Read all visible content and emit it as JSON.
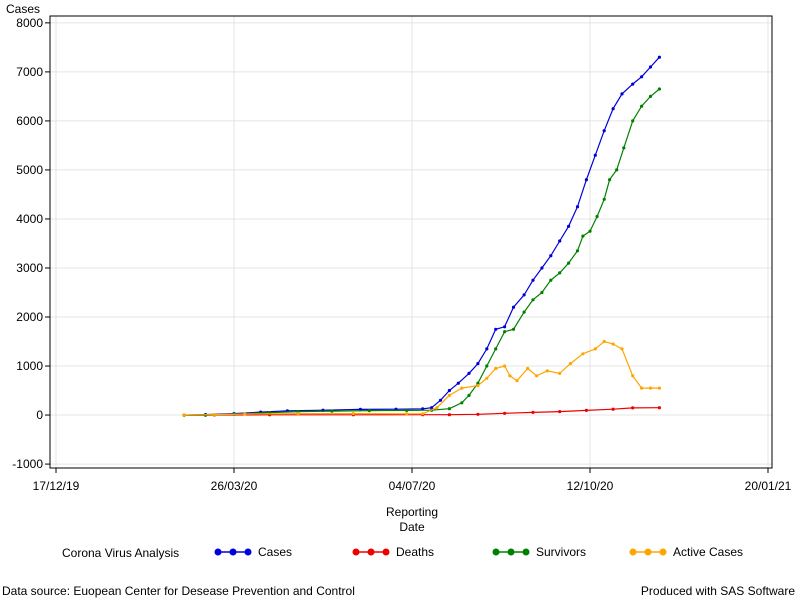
{
  "chart_data": {
    "type": "line",
    "ylabel": "Cases",
    "xlabel_lines": [
      "Reporting",
      "Date"
    ],
    "ylim": [
      -1000,
      8000
    ],
    "y_ticks": [
      -1000,
      0,
      1000,
      2000,
      3000,
      4000,
      5000,
      6000,
      7000,
      8000
    ],
    "x_axis": {
      "type": "date",
      "min": "2019-12-17",
      "max": "2021-01-20",
      "ticks": [
        {
          "date": "2019-12-17",
          "label": "17/12/19"
        },
        {
          "date": "2020-03-26",
          "label": "26/03/20"
        },
        {
          "date": "2020-07-04",
          "label": "04/07/20"
        },
        {
          "date": "2020-10-12",
          "label": "12/10/20"
        },
        {
          "date": "2021-01-20",
          "label": "20/01/21"
        }
      ]
    },
    "grid": true,
    "legend_title": "Corona Virus Analysis",
    "legend_position": "bottom",
    "series": [
      {
        "name": "Cases",
        "color": "#0000dd",
        "points": [
          [
            "2020-02-27",
            0
          ],
          [
            "2020-03-10",
            10
          ],
          [
            "2020-03-26",
            30
          ],
          [
            "2020-04-10",
            60
          ],
          [
            "2020-04-25",
            85
          ],
          [
            "2020-05-15",
            100
          ],
          [
            "2020-06-05",
            115
          ],
          [
            "2020-06-25",
            120
          ],
          [
            "2020-07-10",
            125
          ],
          [
            "2020-07-15",
            150
          ],
          [
            "2020-07-20",
            300
          ],
          [
            "2020-07-25",
            500
          ],
          [
            "2020-07-30",
            650
          ],
          [
            "2020-08-05",
            850
          ],
          [
            "2020-08-10",
            1050
          ],
          [
            "2020-08-15",
            1350
          ],
          [
            "2020-08-20",
            1750
          ],
          [
            "2020-08-25",
            1800
          ],
          [
            "2020-08-30",
            2200
          ],
          [
            "2020-09-05",
            2450
          ],
          [
            "2020-09-10",
            2750
          ],
          [
            "2020-09-15",
            3000
          ],
          [
            "2020-09-20",
            3250
          ],
          [
            "2020-09-25",
            3550
          ],
          [
            "2020-09-30",
            3850
          ],
          [
            "2020-10-05",
            4250
          ],
          [
            "2020-10-10",
            4800
          ],
          [
            "2020-10-15",
            5300
          ],
          [
            "2020-10-20",
            5800
          ],
          [
            "2020-10-25",
            6250
          ],
          [
            "2020-10-30",
            6550
          ],
          [
            "2020-11-05",
            6750
          ],
          [
            "2020-11-10",
            6900
          ],
          [
            "2020-11-15",
            7100
          ],
          [
            "2020-11-20",
            7300
          ]
        ]
      },
      {
        "name": "Deaths",
        "color": "#ee0000",
        "points": [
          [
            "2020-02-27",
            0
          ],
          [
            "2020-03-15",
            2
          ],
          [
            "2020-04-15",
            5
          ],
          [
            "2020-06-01",
            6
          ],
          [
            "2020-07-10",
            7
          ],
          [
            "2020-07-25",
            8
          ],
          [
            "2020-08-10",
            15
          ],
          [
            "2020-08-25",
            35
          ],
          [
            "2020-09-10",
            55
          ],
          [
            "2020-09-25",
            70
          ],
          [
            "2020-10-10",
            95
          ],
          [
            "2020-10-25",
            120
          ],
          [
            "2020-11-05",
            145
          ],
          [
            "2020-11-20",
            150
          ]
        ]
      },
      {
        "name": "Survivors",
        "color": "#008000",
        "points": [
          [
            "2020-02-27",
            -5
          ],
          [
            "2020-03-10",
            -5
          ],
          [
            "2020-03-26",
            20
          ],
          [
            "2020-04-15",
            50
          ],
          [
            "2020-05-01",
            70
          ],
          [
            "2020-05-20",
            80
          ],
          [
            "2020-06-10",
            90
          ],
          [
            "2020-07-01",
            95
          ],
          [
            "2020-07-15",
            100
          ],
          [
            "2020-07-25",
            130
          ],
          [
            "2020-08-01",
            250
          ],
          [
            "2020-08-05",
            400
          ],
          [
            "2020-08-10",
            650
          ],
          [
            "2020-08-15",
            1000
          ],
          [
            "2020-08-20",
            1350
          ],
          [
            "2020-08-25",
            1700
          ],
          [
            "2020-08-30",
            1750
          ],
          [
            "2020-09-05",
            2100
          ],
          [
            "2020-09-10",
            2350
          ],
          [
            "2020-09-15",
            2500
          ],
          [
            "2020-09-20",
            2750
          ],
          [
            "2020-09-25",
            2900
          ],
          [
            "2020-09-30",
            3100
          ],
          [
            "2020-10-05",
            3350
          ],
          [
            "2020-10-08",
            3650
          ],
          [
            "2020-10-12",
            3750
          ],
          [
            "2020-10-16",
            4050
          ],
          [
            "2020-10-20",
            4400
          ],
          [
            "2020-10-23",
            4800
          ],
          [
            "2020-10-27",
            5000
          ],
          [
            "2020-10-31",
            5450
          ],
          [
            "2020-11-05",
            6000
          ],
          [
            "2020-11-10",
            6300
          ],
          [
            "2020-11-15",
            6500
          ],
          [
            "2020-11-20",
            6650
          ]
        ]
      },
      {
        "name": "Active Cases",
        "color": "#ffa500",
        "points": [
          [
            "2020-02-27",
            0
          ],
          [
            "2020-03-15",
            10
          ],
          [
            "2020-04-01",
            20
          ],
          [
            "2020-05-01",
            30
          ],
          [
            "2020-06-01",
            30
          ],
          [
            "2020-07-01",
            25
          ],
          [
            "2020-07-10",
            25
          ],
          [
            "2020-07-18",
            150
          ],
          [
            "2020-07-25",
            400
          ],
          [
            "2020-08-01",
            550
          ],
          [
            "2020-08-10",
            600
          ],
          [
            "2020-08-15",
            750
          ],
          [
            "2020-08-20",
            950
          ],
          [
            "2020-08-25",
            1000
          ],
          [
            "2020-08-28",
            800
          ],
          [
            "2020-09-01",
            700
          ],
          [
            "2020-09-07",
            950
          ],
          [
            "2020-09-12",
            800
          ],
          [
            "2020-09-18",
            900
          ],
          [
            "2020-09-25",
            850
          ],
          [
            "2020-10-01",
            1050
          ],
          [
            "2020-10-08",
            1250
          ],
          [
            "2020-10-15",
            1350
          ],
          [
            "2020-10-20",
            1500
          ],
          [
            "2020-10-25",
            1450
          ],
          [
            "2020-10-30",
            1350
          ],
          [
            "2020-11-05",
            800
          ],
          [
            "2020-11-10",
            550
          ],
          [
            "2020-11-15",
            550
          ],
          [
            "2020-11-20",
            550
          ]
        ]
      }
    ]
  },
  "footer": {
    "left": "Data source: Euopean Center for Desease Prevention and Control",
    "right": "Produced with SAS Software"
  }
}
